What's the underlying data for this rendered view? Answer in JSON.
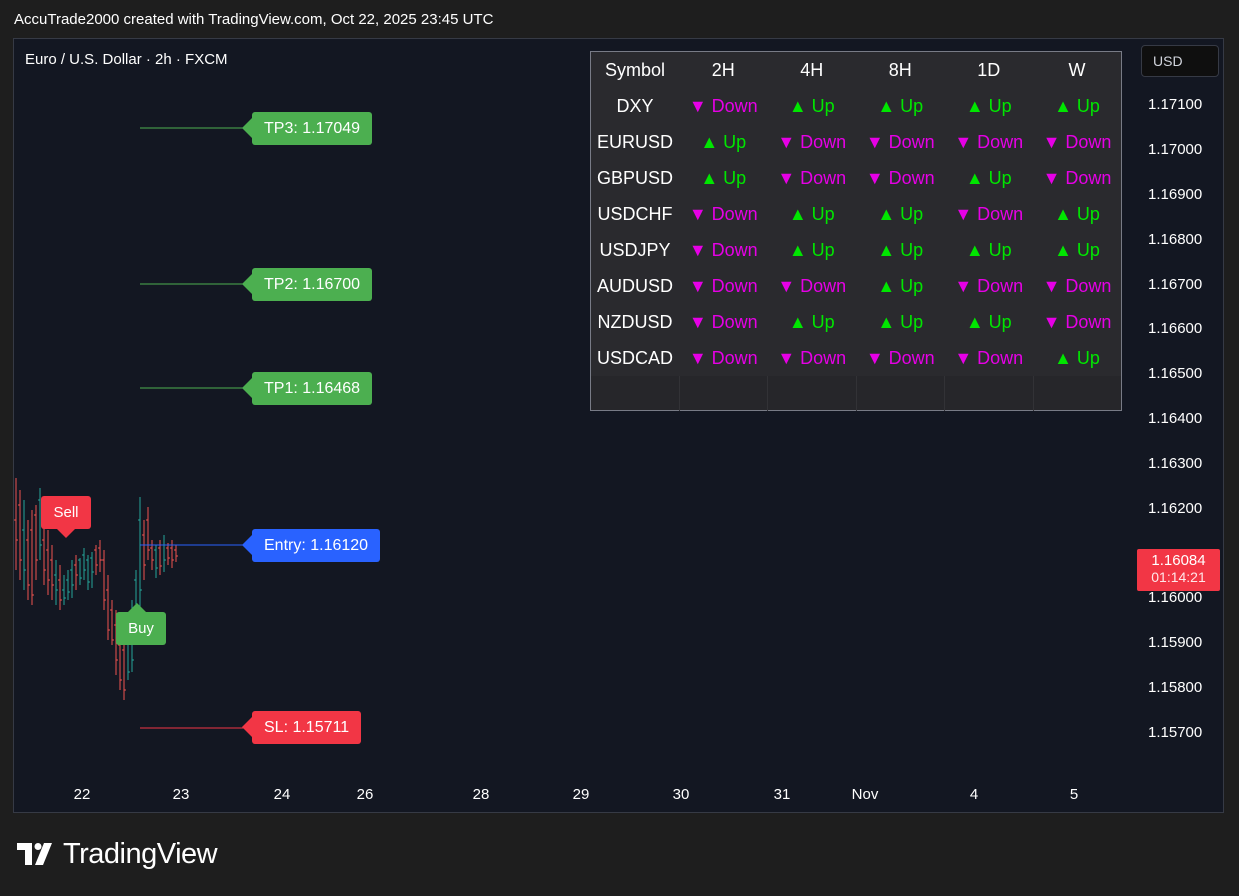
{
  "header": {
    "caption": "AccuTrade2000 created with TradingView.com, Oct 22, 2025 23:45 UTC"
  },
  "chart": {
    "symbol_title": "Euro / U.S. Dollar · 2h · FXCM",
    "currency": "USD",
    "price_axis": [
      "1.17100",
      "1.17000",
      "1.16900",
      "1.16800",
      "1.16700",
      "1.16600",
      "1.16500",
      "1.16400",
      "1.16300",
      "1.16200",
      "1.16000",
      "1.15900",
      "1.15800",
      "1.15700"
    ],
    "last_price": "1.16084",
    "countdown": "01:14:21",
    "time_axis": [
      "22",
      "23",
      "24",
      "26",
      "28",
      "29",
      "30",
      "31",
      "Nov",
      "4",
      "5"
    ],
    "levels": {
      "tp3": "TP3: 1.17049",
      "tp2": "TP2: 1.16700",
      "tp1": "TP1: 1.16468",
      "entry": "Entry: 1.16120",
      "sl": "SL: 1.15711"
    },
    "signals": {
      "sell": "Sell",
      "buy": "Buy"
    },
    "colors": {
      "up": "#00e600",
      "down": "#e600e6",
      "bull": "#26a69a",
      "bear": "#ef5350",
      "tp": "#4caf50",
      "entry": "#2962ff",
      "sl": "#f23645"
    }
  },
  "trend_table": {
    "headers": [
      "Symbol",
      "2H",
      "4H",
      "8H",
      "1D",
      "W"
    ],
    "rows": [
      {
        "symbol": "DXY",
        "cells": [
          "▼ Down",
          "▲ Up",
          "▲ Up",
          "▲ Up",
          "▲ Up"
        ]
      },
      {
        "symbol": "EURUSD",
        "cells": [
          "▲ Up",
          "▼ Down",
          "▼ Down",
          "▼ Down",
          "▼ Down"
        ]
      },
      {
        "symbol": "GBPUSD",
        "cells": [
          "▲ Up",
          "▼ Down",
          "▼ Down",
          "▲ Up",
          "▼ Down"
        ]
      },
      {
        "symbol": "USDCHF",
        "cells": [
          "▼ Down",
          "▲ Up",
          "▲ Up",
          "▼ Down",
          "▲ Up"
        ]
      },
      {
        "symbol": "USDJPY",
        "cells": [
          "▼ Down",
          "▲ Up",
          "▲ Up",
          "▲ Up",
          "▲ Up"
        ]
      },
      {
        "symbol": "AUDUSD",
        "cells": [
          "▼ Down",
          "▼ Down",
          "▲ Up",
          "▼ Down",
          "▼ Down"
        ]
      },
      {
        "symbol": "NZDUSD",
        "cells": [
          "▼ Down",
          "▲ Up",
          "▲ Up",
          "▲ Up",
          "▼ Down"
        ]
      },
      {
        "symbol": "USDCAD",
        "cells": [
          "▼ Down",
          "▼ Down",
          "▼ Down",
          "▼ Down",
          "▲ Up"
        ]
      }
    ]
  },
  "footer": {
    "brand": "TradingView",
    "logo_icon": "tradingview-logo-icon"
  }
}
